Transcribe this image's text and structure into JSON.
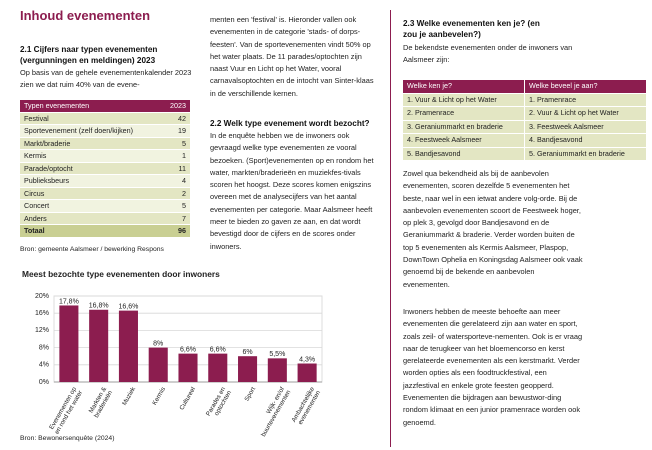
{
  "title": "Inhoud evenementen",
  "section_2_1": {
    "heading": "2.1 Cijfers naar typen evenementen (vergunningen en meldingen) 2023",
    "paragraph_start": "Op basis van de gehele evenementenkalender 2023 zien we dat ruim 40% van de evene-",
    "paragraph_end": "menten een 'festival' is. Hieronder vallen ook evenementen in de categorie 'stads- of dorps-feesten'. Van de sportevenementen vindt 50% op het water plaats. De 11 parades/optochten zijn naast Vuur en Licht op het Water, vooral carnavalsoptochten en de intocht van Sinter-klaas in de verschillende kernen."
  },
  "table": {
    "header": [
      "Typen evenementen",
      "2023"
    ],
    "rows": [
      [
        "Festival",
        42
      ],
      [
        "Sportevenement (zelf doen/kijken)",
        19
      ],
      [
        "Markt/braderie",
        5
      ],
      [
        "Kermis",
        1
      ],
      [
        "Parade/optocht",
        11
      ],
      [
        "Publieksbeurs",
        4
      ],
      [
        "Circus",
        2
      ],
      [
        "Concert",
        5
      ],
      [
        "Anders",
        7
      ]
    ],
    "total": [
      "Totaal",
      96
    ],
    "source": "Bron: gemeente Aalsmeer / bewerking Respons"
  },
  "chart_data": {
    "type": "bar",
    "title": "Meest bezochte type evenementen door inwoners",
    "categories": [
      "Evenementen op en rond het water",
      "Markten & braderieën",
      "Muziek",
      "Kermis",
      "Cultureel",
      "Parades en optochten",
      "Sport",
      "Wijk- en/of buurtevenementen",
      "Ambachtelijke evenementen"
    ],
    "values": [
      17.8,
      16.8,
      16.6,
      8,
      6.6,
      6.6,
      6,
      5.5,
      4.3
    ],
    "value_labels": [
      "17,8%",
      "16,8%",
      "16,6%",
      "8%",
      "6,6%",
      "6,6%",
      "6%",
      "5,5%",
      "4,3%"
    ],
    "color": "#8c1d4f",
    "ylim": [
      0,
      20
    ],
    "yticks": [
      {
        "value": 0,
        "label": "0%"
      },
      {
        "value": 4,
        "label": "4%"
      },
      {
        "value": 8,
        "label": "8%"
      },
      {
        "value": 12,
        "label": "12%"
      },
      {
        "value": 16,
        "label": "16%"
      },
      {
        "value": 20,
        "label": "20%"
      }
    ],
    "grid": true,
    "source": "Bron: Bewonersenquête (2024)"
  },
  "section_2_2": {
    "heading": "2.2 Welk type evenement wordt bezocht?",
    "paragraph": "In de enquête hebben we de inwoners ook gevraagd welke type evenementen ze vooral bezoeken. (Sport)evenementen op en rondom het water, markten/braderieën en muziekfes-tivals scoren het hoogst. Deze scores komen enigszins overeen met de analysecijfers van het aantal evenementen per categorie. Maar Aalsmeer heeft meer te bieden zo gaven ze aan, en dat wordt bevestigd door de cijfers en de scores onder inwoners."
  },
  "section_2_3": {
    "heading": "2.3 Welke evenementen ken je? (en zou je aanbevelen?)",
    "intro": "De bekendste evenementen onder de inwoners van Aalsmeer zijn:",
    "table": {
      "header": [
        "Welke ken je?",
        "Welke beveel je aan?"
      ],
      "rows": [
        [
          "1. Vuur & Licht op het Water",
          "1. Pramenrace"
        ],
        [
          "2. Pramenrace",
          "2. Vuur & Licht op het Water"
        ],
        [
          "3. Geraniummarkt en braderie",
          "3. Feestweek Aalsmeer"
        ],
        [
          "4. Feestweek Aalsmeer",
          "4. Bandjesavond"
        ],
        [
          "5. Bandjesavond",
          "5. Geraniummarkt en braderie"
        ]
      ]
    },
    "paragraphs": [
      "Zowel qua bekendheid als bij de aanbevolen evenementen, scoren dezelfde 5 evenementen het beste, naar wel in een ietwat andere volg-orde. Bij de aanbevolen evenementen scoort de Feestweek hoger, op plek 3, gevolgd door Bandjesavond en de Geraniummarkt & braderie. Verder worden buiten de top 5 evenementen als Kermis Aalsmeer, Plaspop, DownTown Ophelia en Koningsdag Aalsmeer ook vaak genoemd bij de bekende en aanbevolen evenementen.",
      "Inwoners hebben de meeste behoefte aan meer evenementen die gerelateerd zijn aan water en sport, zoals zeil- of watersporteve-nementen. Ook is er vraag naar de terugkeer van het bloemencorso en kerst gerelateerde evenementen als een kerstmarkt. Verder worden opties als een foodtruckfestival, een jazzfestival en enkele grote feesten geopperd. Evenementen die bijdragen aan bewustwor-ding rondom klimaat en een junior pramenrace worden ook genoemd."
    ]
  }
}
